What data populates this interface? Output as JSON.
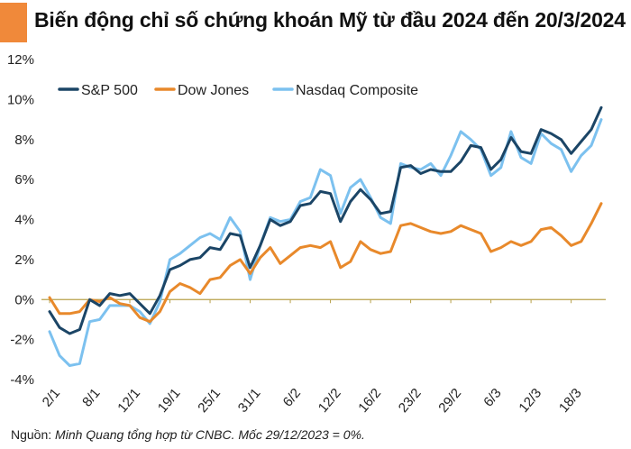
{
  "title": "Biến động chỉ số chứng khoán Mỹ từ đầu 2024 đến 20/3/2024",
  "source": {
    "label": "Nguồn:",
    "text": "Minh Quang tổng hợp từ CNBC. Mốc 29/12/2023 = 0%."
  },
  "colors": {
    "accent": "#f0893a",
    "sp500": "#1b4566",
    "dow": "#e8892b",
    "nasdaq": "#7cc1ef",
    "zero_line": "#b8a14a"
  },
  "chart_data": {
    "type": "line",
    "title": "Biến động chỉ số chứng khoán Mỹ từ đầu 2024 đến 20/3/2024",
    "xlabel": "",
    "ylabel": "",
    "ylim": [
      -4,
      12
    ],
    "yticks": [
      "-4%",
      "-2%",
      "0%",
      "2%",
      "4%",
      "6%",
      "8%",
      "10%",
      "12%"
    ],
    "ytick_values": [
      -4,
      -2,
      0,
      2,
      4,
      6,
      8,
      10,
      12
    ],
    "x_tick_labels": [
      "2/1",
      "8/1",
      "12/1",
      "19/1",
      "25/1",
      "31/1",
      "6/2",
      "12/2",
      "16/2",
      "23/2",
      "29/2",
      "6/3",
      "12/3",
      "18/3"
    ],
    "x_tick_index": [
      0,
      4,
      8,
      12,
      16,
      20,
      24,
      28,
      32,
      36,
      40,
      44,
      48,
      52
    ],
    "grid": false,
    "legend_position": "top-left",
    "series": [
      {
        "name": "S&P 500",
        "values": [
          -0.6,
          -1.4,
          -1.7,
          -1.5,
          0.0,
          -0.3,
          0.3,
          0.2,
          0.3,
          -0.2,
          -0.7,
          0.2,
          1.5,
          1.7,
          2.0,
          2.1,
          2.6,
          2.5,
          3.3,
          3.2,
          1.6,
          2.7,
          4.0,
          3.7,
          3.9,
          4.7,
          4.8,
          5.4,
          5.3,
          3.9,
          4.9,
          5.5,
          5.0,
          4.3,
          4.4,
          6.6,
          6.7,
          6.3,
          6.5,
          6.4,
          6.4,
          6.9,
          7.7,
          7.6,
          6.5,
          7.0,
          8.1,
          7.4,
          7.3,
          8.5,
          8.3,
          8.0,
          7.3,
          7.9,
          8.5,
          9.6
        ]
      },
      {
        "name": "Dow Jones",
        "values": [
          0.1,
          -0.7,
          -0.7,
          -0.6,
          0.0,
          -0.1,
          0.1,
          -0.2,
          -0.3,
          -0.9,
          -1.1,
          -0.6,
          0.4,
          0.8,
          0.6,
          0.3,
          1.0,
          1.1,
          1.7,
          2.0,
          1.3,
          2.1,
          2.6,
          1.8,
          2.2,
          2.6,
          2.7,
          2.6,
          2.9,
          1.6,
          1.9,
          2.9,
          2.5,
          2.3,
          2.4,
          3.7,
          3.8,
          3.6,
          3.4,
          3.3,
          3.4,
          3.7,
          3.5,
          3.3,
          2.4,
          2.6,
          2.9,
          2.7,
          2.9,
          3.5,
          3.6,
          3.2,
          2.7,
          2.9,
          3.8,
          4.8
        ]
      },
      {
        "name": "Nasdaq Composite",
        "values": [
          -1.6,
          -2.8,
          -3.3,
          -3.2,
          -1.1,
          -1.0,
          -0.3,
          -0.3,
          -0.3,
          -0.6,
          -1.2,
          -0.1,
          2.0,
          2.3,
          2.7,
          3.1,
          3.3,
          3.0,
          4.1,
          3.4,
          1.0,
          2.7,
          4.1,
          3.9,
          4.0,
          4.9,
          5.1,
          6.5,
          6.2,
          4.3,
          5.6,
          6.0,
          5.1,
          4.1,
          3.8,
          6.8,
          6.6,
          6.5,
          6.8,
          6.2,
          7.2,
          8.4,
          8.0,
          7.5,
          6.2,
          6.6,
          8.4,
          7.1,
          6.8,
          8.3,
          7.8,
          7.5,
          6.4,
          7.2,
          7.7,
          9.0
        ]
      }
    ]
  }
}
